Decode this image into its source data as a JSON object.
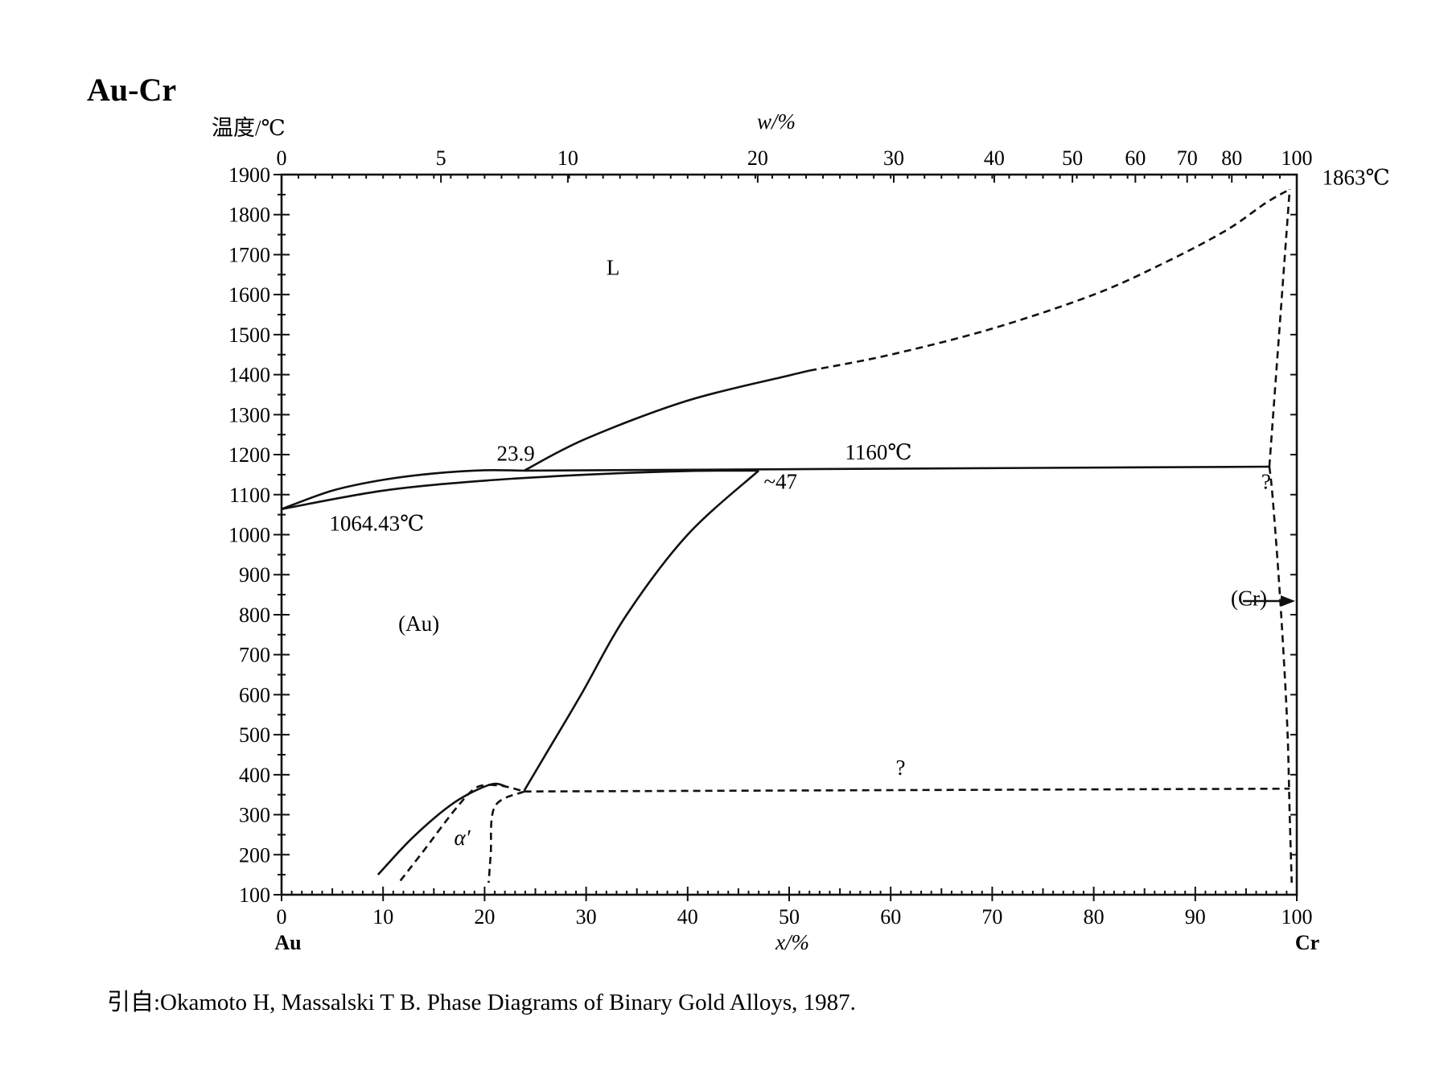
{
  "chart_data": {
    "type": "line",
    "title": "Au-Cr",
    "ylabel": "温度/℃",
    "xlabel": "x/%",
    "x2label": "w/%",
    "xlim": [
      0,
      100
    ],
    "ylim": [
      100,
      1900
    ],
    "y_ticks": [
      100,
      200,
      300,
      400,
      500,
      600,
      700,
      800,
      900,
      1000,
      1100,
      1200,
      1300,
      1400,
      1500,
      1600,
      1700,
      1800,
      1900
    ],
    "x_ticks": [
      0,
      10,
      20,
      30,
      40,
      50,
      60,
      70,
      80,
      90,
      100
    ],
    "top_ticks": [
      {
        "label": "0",
        "x": 0
      },
      {
        "label": "5",
        "x": 15.7
      },
      {
        "label": "10",
        "x": 28.2
      },
      {
        "label": "20",
        "x": 46.9
      },
      {
        "label": "30",
        "x": 60.3
      },
      {
        "label": "40",
        "x": 70.2
      },
      {
        "label": "50",
        "x": 77.9
      },
      {
        "label": "60",
        "x": 84.1
      },
      {
        "label": "70",
        "x": 89.2
      },
      {
        "label": "80",
        "x": 93.6
      },
      {
        "label": "100",
        "x": 100
      }
    ],
    "x_end_labels": {
      "left": "Au",
      "right": "Cr"
    },
    "grid": false,
    "series": [
      {
        "style": "solid",
        "points": [
          [
            0,
            1064
          ],
          [
            5,
            1110
          ],
          [
            10,
            1137
          ],
          [
            15,
            1153
          ],
          [
            20,
            1161
          ],
          [
            23.9,
            1160
          ]
        ]
      },
      {
        "style": "solid",
        "points": [
          [
            0,
            1064
          ],
          [
            10,
            1110
          ],
          [
            20,
            1135
          ],
          [
            30,
            1150
          ],
          [
            40,
            1159
          ],
          [
            47,
            1160
          ]
        ]
      },
      {
        "style": "solid",
        "points": [
          [
            23.9,
            1160
          ],
          [
            30,
            1240
          ],
          [
            40,
            1335
          ],
          [
            50,
            1398
          ],
          [
            52,
            1410
          ]
        ]
      },
      {
        "style": "dashed",
        "points": [
          [
            52,
            1410
          ],
          [
            60,
            1450
          ],
          [
            70,
            1515
          ],
          [
            80,
            1600
          ],
          [
            87,
            1680
          ],
          [
            93,
            1760
          ],
          [
            97,
            1830
          ],
          [
            99.3,
            1863
          ]
        ]
      },
      {
        "style": "solid",
        "points": [
          [
            23.9,
            1160
          ],
          [
            97.3,
            1170
          ]
        ]
      },
      {
        "style": "dashed",
        "points": [
          [
            97.3,
            1170
          ],
          [
            99.3,
            1863
          ]
        ]
      },
      {
        "style": "dashed",
        "points": [
          [
            97.3,
            1170
          ],
          [
            97.6,
            1100
          ],
          [
            98.2,
            900
          ],
          [
            98.7,
            700
          ],
          [
            99.1,
            500
          ],
          [
            99.3,
            300
          ],
          [
            99.5,
            130
          ]
        ]
      },
      {
        "style": "solid",
        "points": [
          [
            47,
            1160
          ],
          [
            40,
            1000
          ],
          [
            34,
            800
          ],
          [
            29.5,
            600
          ],
          [
            26,
            450
          ],
          [
            23.9,
            360
          ]
        ]
      },
      {
        "style": "solid",
        "points": [
          [
            9.5,
            150
          ],
          [
            13,
            245
          ],
          [
            17,
            330
          ],
          [
            20.5,
            375
          ],
          [
            22,
            372
          ]
        ]
      },
      {
        "style": "dashed",
        "points": [
          [
            20.5,
            375
          ],
          [
            22,
            371
          ],
          [
            23.9,
            358
          ]
        ]
      },
      {
        "style": "dashed",
        "points": [
          [
            23.9,
            358
          ],
          [
            21,
            320
          ],
          [
            20.6,
            200
          ],
          [
            20.4,
            130
          ]
        ]
      },
      {
        "style": "dashed",
        "points": [
          [
            11.7,
            135
          ],
          [
            14,
            210
          ],
          [
            17,
            310
          ],
          [
            19,
            365
          ],
          [
            20.5,
            375
          ]
        ]
      },
      {
        "style": "dashed",
        "points": [
          [
            23.9,
            358
          ],
          [
            99.3,
            365
          ]
        ]
      }
    ],
    "annotations": [
      {
        "text": "L",
        "x": 32,
        "y": 1650
      },
      {
        "text": "23.9",
        "x": 21.2,
        "y": 1185
      },
      {
        "text": "1160℃",
        "x": 55.5,
        "y": 1188
      },
      {
        "text": "~47",
        "x": 47.5,
        "y": 1115
      },
      {
        "text": "?",
        "x": 96.5,
        "y": 1115
      },
      {
        "text": "1064.43℃",
        "x": 4.7,
        "y": 1010
      },
      {
        "text": "(Au)",
        "x": 11.5,
        "y": 760
      },
      {
        "text": "(Cr)",
        "x": 93.5,
        "y": 823
      },
      {
        "text": "?",
        "x": 60.5,
        "y": 400
      },
      {
        "text": "α′",
        "x": 17,
        "y": 225
      },
      {
        "text": "1863℃",
        "x": 102.5,
        "y": 1875
      }
    ],
    "source": "引自:Okamoto H, Massalski T B. Phase Diagrams of Binary Gold Alloys, 1987."
  }
}
